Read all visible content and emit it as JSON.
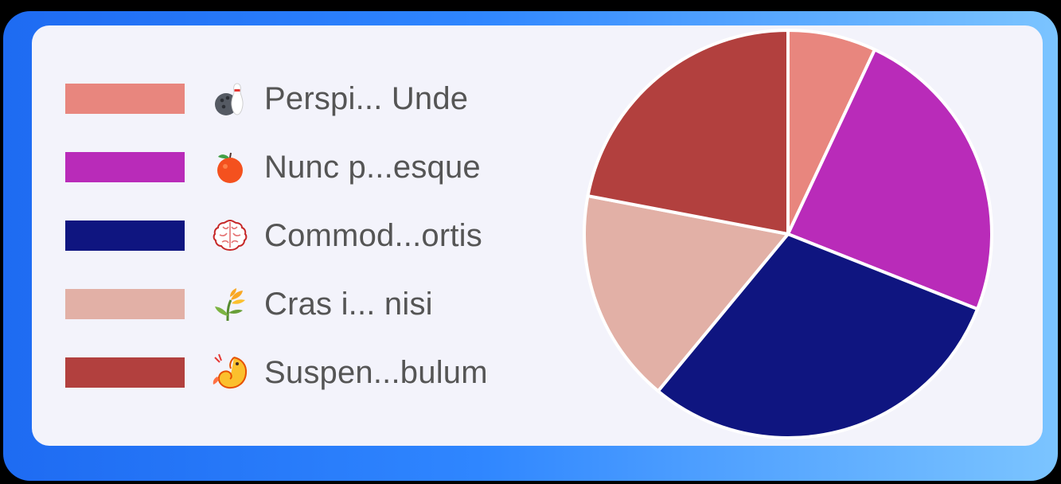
{
  "chart_data": {
    "type": "pie",
    "legend_position": "left",
    "slices": [
      {
        "label": "Perspi... Unde",
        "value": 7,
        "color": "#e8867e",
        "icon": "bowling-icon"
      },
      {
        "label": "Nunc p...esque",
        "value": 24,
        "color": "#b92bb9",
        "icon": "orange-fruit-icon"
      },
      {
        "label": "Commod...ortis",
        "value": 30,
        "color": "#0f1580",
        "icon": "brain-icon"
      },
      {
        "label": "Cras i... nisi",
        "value": 17,
        "color": "#e2b0a6",
        "icon": "rice-plant-icon"
      },
      {
        "label": "Suspen...bulum",
        "value": 22,
        "color": "#b2403e",
        "icon": "shrimp-icon"
      }
    ]
  },
  "colors": {
    "card_background": "#f3f3fb",
    "frame_gradient_start": "#1e6bf2",
    "frame_gradient_end": "#7bc4ff",
    "legend_text": "#555555"
  }
}
